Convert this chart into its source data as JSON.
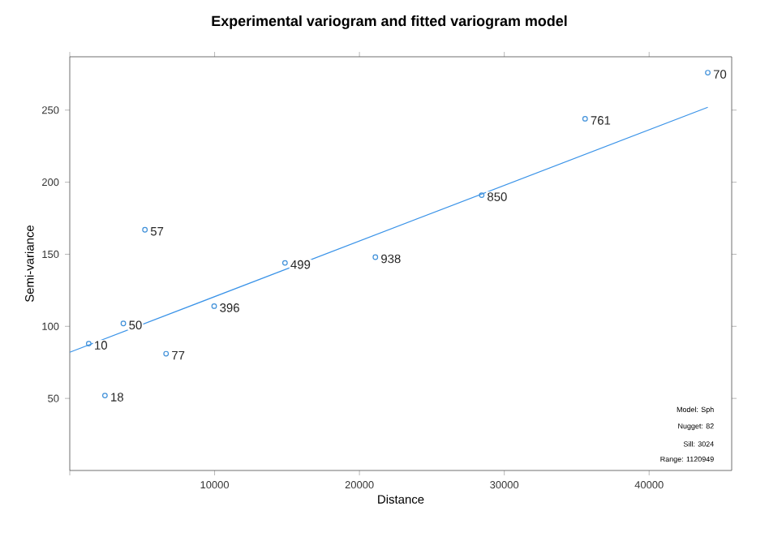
{
  "chart_data": {
    "type": "scatter",
    "title": "Experimental variogram and fitted variogram model",
    "xlabel": "Distance",
    "ylabel": "Semi-variance",
    "xlim": [
      0,
      45700
    ],
    "ylim": [
      0,
      287
    ],
    "xticks": [
      {
        "value": 0,
        "label": null
      },
      10000,
      20000,
      30000,
      40000
    ],
    "yticks": [
      50,
      100,
      150,
      200,
      250
    ],
    "grid": false,
    "annotations": [
      "Model: Sph",
      "Nugget: 82",
      "Sill: 3024",
      "Range: 1120949",
      {
        "text": "10",
        "x": 1310,
        "y": 88
      },
      {
        "text": "18",
        "x": 2430,
        "y": 52
      },
      {
        "text": "50",
        "x": 3700,
        "y": 102
      },
      {
        "text": "57",
        "x": 5190,
        "y": 167
      },
      {
        "text": "77",
        "x": 6650,
        "y": 81
      },
      {
        "text": "396",
        "x": 9970,
        "y": 114
      },
      {
        "text": "499",
        "x": 14860,
        "y": 144
      },
      {
        "text": "938",
        "x": 21100,
        "y": 148
      },
      {
        "text": "850",
        "x": 28440,
        "y": 191
      },
      {
        "text": "761",
        "x": 35580,
        "y": 244
      },
      {
        "text": "70",
        "x": 44050,
        "y": 276
      }
    ],
    "series": [
      {
        "color": "#3d8fd9",
        "marker": "circle",
        "x": [
          1310,
          2430,
          3700,
          5190,
          6650,
          9970,
          14860,
          21100,
          28440,
          35580,
          44050
        ],
        "values": [
          88,
          52,
          102,
          167,
          81,
          114,
          144,
          148,
          191,
          244,
          276
        ]
      },
      {
        "type": "line",
        "marker": "none",
        "color": "#3a93e8",
        "x": [
          0,
          44050
        ],
        "values": [
          82,
          252
        ]
      }
    ]
  }
}
